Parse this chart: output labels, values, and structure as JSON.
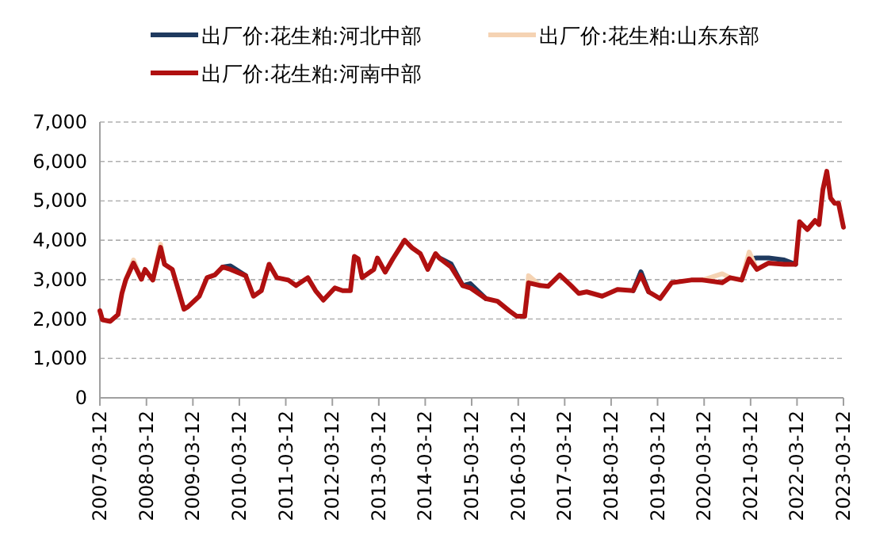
{
  "chart_data": {
    "type": "line",
    "x": [
      "2007-03-12",
      "2007-04",
      "2007-06",
      "2007-08",
      "2007-09",
      "2007-10",
      "2007-12",
      "2008-02",
      "2008-03",
      "2008-05",
      "2008-07",
      "2008-08",
      "2008-10",
      "2009-01",
      "2009-02",
      "2009-05",
      "2009-07",
      "2009-09",
      "2009-11",
      "2010-01",
      "2010-05",
      "2010-07",
      "2010-09",
      "2010-11",
      "2011-01",
      "2011-04",
      "2011-06",
      "2011-09",
      "2011-11",
      "2012-01",
      "2012-04",
      "2012-06",
      "2012-08",
      "2012-09",
      "2012-10",
      "2012-11",
      "2013-02",
      "2013-03",
      "2013-05",
      "2013-07",
      "2013-10",
      "2013-12",
      "2014-02",
      "2014-04",
      "2014-06",
      "2014-07",
      "2014-10",
      "2015-01",
      "2015-03",
      "2015-07",
      "2015-10",
      "2016-01",
      "2016-03",
      "2016-05",
      "2016-06",
      "2016-09",
      "2016-11",
      "2017-02",
      "2017-05",
      "2017-07",
      "2017-09",
      "2018-01",
      "2018-05",
      "2018-09",
      "2018-11",
      "2019-01",
      "2019-04",
      "2019-07",
      "2019-12",
      "2020-03",
      "2020-08",
      "2020-10",
      "2021-01",
      "2021-03",
      "2021-05",
      "2021-08",
      "2021-12",
      "2022-03",
      "2022-04",
      "2022-06",
      "2022-08",
      "2022-09",
      "2022-10",
      "2022-11",
      "2022-12",
      "2023-01",
      "2023-02",
      "2023-03-12"
    ],
    "series": [
      {
        "name": "出厂价:花生粕:河北中部",
        "color": "#1f3a5f",
        "values": [
          null,
          null,
          null,
          null,
          null,
          null,
          null,
          null,
          null,
          null,
          null,
          null,
          null,
          null,
          null,
          null,
          null,
          null,
          3320,
          3350,
          3100,
          null,
          null,
          null,
          null,
          null,
          null,
          null,
          null,
          null,
          null,
          null,
          null,
          null,
          null,
          null,
          null,
          null,
          null,
          null,
          null,
          null,
          null,
          null,
          null,
          3550,
          3400,
          2850,
          2900,
          2520,
          null,
          null,
          null,
          null,
          null,
          null,
          null,
          null,
          null,
          null,
          null,
          null,
          null,
          2720,
          3200,
          2690,
          null,
          null,
          null,
          null,
          null,
          null,
          null,
          3530,
          3550,
          3550,
          3500,
          3390,
          null,
          null,
          null,
          null,
          null,
          null,
          null,
          null,
          null,
          null
        ]
      },
      {
        "name": "出厂价:花生粕:山东东部",
        "color": "#f5d3b3",
        "values": [
          null,
          null,
          null,
          null,
          null,
          2990,
          3500,
          3010,
          null,
          2990,
          3900,
          3390,
          null,
          null,
          null,
          null,
          null,
          null,
          null,
          null,
          null,
          null,
          null,
          null,
          null,
          null,
          null,
          null,
          null,
          null,
          null,
          null,
          null,
          null,
          null,
          null,
          null,
          null,
          null,
          null,
          null,
          null,
          null,
          null,
          null,
          null,
          null,
          null,
          null,
          null,
          null,
          null,
          null,
          2070,
          3100,
          2850,
          null,
          null,
          null,
          null,
          null,
          null,
          null,
          null,
          null,
          null,
          null,
          null,
          null,
          2990,
          3150,
          3050,
          2990,
          3700,
          3260,
          null,
          null,
          null,
          null,
          null,
          null,
          null,
          null,
          null,
          null,
          null,
          null,
          null
        ]
      },
      {
        "name": "出厂价:花生粕:河南中部",
        "color": "#b01010",
        "values": [
          2210,
          1980,
          1940,
          2110,
          2650,
          2990,
          3420,
          3010,
          3260,
          2990,
          3820,
          3390,
          3260,
          2250,
          2310,
          2580,
          3050,
          3120,
          3320,
          3260,
          3100,
          2580,
          2720,
          3390,
          3050,
          2990,
          2850,
          3050,
          2720,
          2480,
          2790,
          2720,
          2720,
          3590,
          3530,
          3050,
          3260,
          3550,
          3190,
          3530,
          4000,
          3800,
          3660,
          3260,
          3660,
          3550,
          3320,
          2850,
          2790,
          2520,
          2450,
          2210,
          2070,
          2070,
          2920,
          2850,
          2830,
          3120,
          2850,
          2650,
          2690,
          2580,
          2750,
          2720,
          3120,
          2690,
          2520,
          2920,
          2990,
          2990,
          2920,
          3050,
          2990,
          3530,
          3260,
          3420,
          3390,
          3390,
          4470,
          4270,
          4500,
          4400,
          5280,
          5750,
          5070,
          4940,
          4940,
          4330
        ]
      }
    ],
    "xlim": [
      "2007-03-12",
      "2023-03-12"
    ],
    "xticks": [
      "2007-03-12",
      "2008-03-12",
      "2009-03-12",
      "2010-03-12",
      "2011-03-12",
      "2012-03-12",
      "2013-03-12",
      "2014-03-12",
      "2015-03-12",
      "2016-03-12",
      "2017-03-12",
      "2018-03-12",
      "2019-03-12",
      "2020-03-12",
      "2021-03-12",
      "2022-03-12",
      "2023-03-12"
    ],
    "ylim": [
      0,
      7000
    ],
    "yticks": [
      {
        "value": 0,
        "label": "0"
      },
      {
        "value": 1000,
        "label": "1,000"
      },
      {
        "value": 2000,
        "label": "2,000"
      },
      {
        "value": 3000,
        "label": "3,000"
      },
      {
        "value": 4000,
        "label": "4,000"
      },
      {
        "value": 5000,
        "label": "5,000"
      },
      {
        "value": 6000,
        "label": "6,000"
      },
      {
        "value": 7000,
        "label": "7,000"
      }
    ],
    "grid": "y",
    "legend": "top"
  }
}
